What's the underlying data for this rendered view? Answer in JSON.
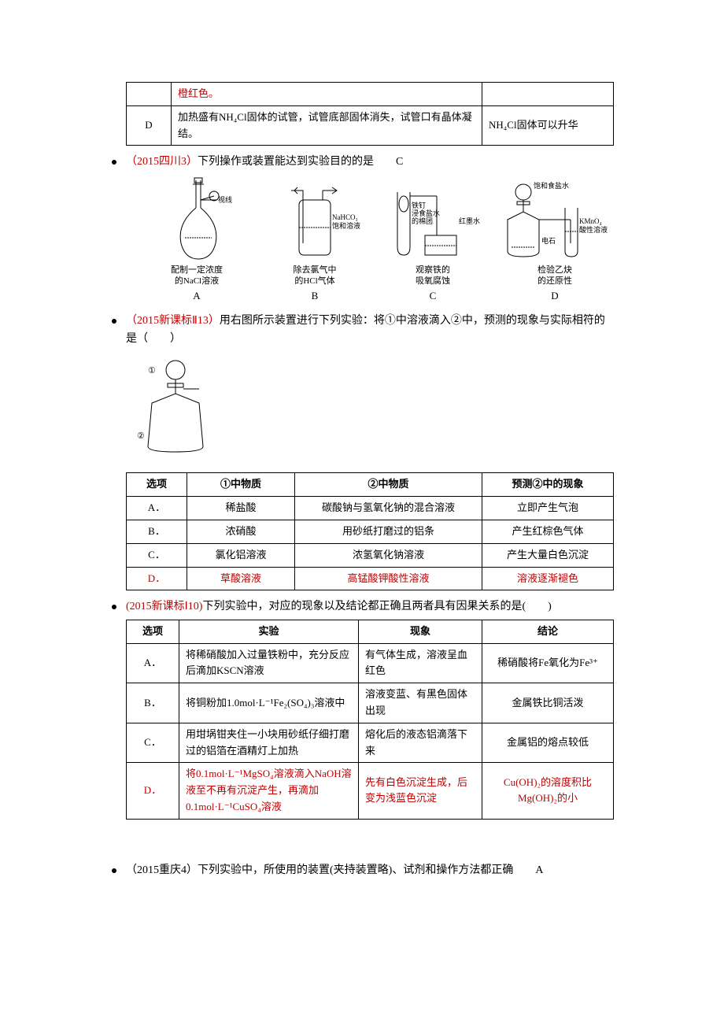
{
  "table1": {
    "row1": {
      "c1": "",
      "c2_red": "橙红色。",
      "c3": ""
    },
    "row2": {
      "c1": "D",
      "c2": "加热盛有NH₄Cl固体的试管，试管底部固体消失，试管口有晶体凝结。",
      "c3": "NH₄Cl固体可以升华"
    }
  },
  "q_sichuan": {
    "prefix": "（2015四川3）",
    "text": "下列操作或装置能达到实验目的的是　　",
    "answer": "C",
    "figs": {
      "A": {
        "desc1": "配制一定浓度",
        "desc2": "的NaCl溶液",
        "letter": "A",
        "note": "视线"
      },
      "B": {
        "desc1": "除去氯气中",
        "desc2": "的HCl气体",
        "letter": "B",
        "note1": "NaHCO₃",
        "note2": "饱和溶液"
      },
      "C": {
        "desc1": "观察铁的",
        "desc2": "吸氧腐蚀",
        "letter": "C",
        "note1": "铁钉",
        "note2": "浸食盐水",
        "note3": "的棉团",
        "note4": "红墨水"
      },
      "D": {
        "desc1": "检验乙炔",
        "desc2": "的还原性",
        "letter": "D",
        "note1": "饱和食盐水",
        "note2": "电石",
        "note3": "KMnO₄",
        "note4": "酸性溶液"
      }
    }
  },
  "q_xkb2": {
    "prefix": "（2015新课标Ⅱ13）",
    "text": "用右图所示装置进行下列实验：将①中溶液滴入②中，预测的现象与实际相符的是（　　）",
    "label1": "①",
    "label2": "②",
    "headers": {
      "opt": "选项",
      "c1": "①中物质",
      "c2": "②中物质",
      "c3": "预测②中的现象"
    },
    "rows": [
      {
        "opt": "A．",
        "c1": "稀盐酸",
        "c2": "碳酸钠与氢氧化钠的混合溶液",
        "c3": "立即产生气泡",
        "red": false
      },
      {
        "opt": "B．",
        "c1": "浓硝酸",
        "c2": "用砂纸打磨过的铝条",
        "c3": "产生红棕色气体",
        "red": false
      },
      {
        "opt": "C．",
        "c1": "氯化铝溶液",
        "c2": "浓氢氧化钠溶液",
        "c3": "产生大量白色沉淀",
        "red": false
      },
      {
        "opt": "D．",
        "c1": "草酸溶液",
        "c2": "高锰酸钾酸性溶液",
        "c3": "溶液逐渐褪色",
        "red": true
      }
    ]
  },
  "q_xkb1": {
    "prefix": "(2015新课标Ⅰ10)",
    "text": "下列实验中，对应的现象以及结论都正确且两者具有因果关系的是(　　)",
    "headers": {
      "opt": "选项",
      "exp": "实验",
      "phen": "现象",
      "concl": "结论"
    },
    "rows": [
      {
        "opt": "A．",
        "exp": "将稀硝酸加入过量铁粉中，充分反应后滴加KSCN溶液",
        "phen": "有气体生成，溶液呈血红色",
        "concl": "稀硝酸将Fe氧化为Fe³⁺",
        "red": false
      },
      {
        "opt": "B．",
        "exp": "将铜粉加1.0mol·L⁻¹Fe₂(SO₄)₃溶液中",
        "phen": "溶液变蓝、有黑色固体出现",
        "concl": "金属铁比铜活泼",
        "red": false
      },
      {
        "opt": "C．",
        "exp": "用坩埚钳夹住一小块用砂纸仔细打磨过的铝箔在酒精灯上加热",
        "phen": "熔化后的液态铝滴落下来",
        "concl": "金属铝的熔点较低",
        "red": false
      },
      {
        "opt": "D．",
        "exp": "将0.1mol·L⁻¹MgSO₄溶液滴入NaOH溶液至不再有沉淀产生，再滴加0.1mol·L⁻¹CuSO₄溶液",
        "phen": "先有白色沉淀生成，后变为浅蓝色沉淀",
        "concl": "Cu(OH)₂的溶度积比Mg(OH)₂的小",
        "red": true
      }
    ]
  },
  "q_chongqing": {
    "prefix": "（2015重庆4）",
    "text": "下列实验中，所使用的装置(夹持装置略)、试剂和操作方法都正确　　",
    "answer": "A"
  },
  "colors": {
    "red": "#c00000",
    "black": "#000000",
    "border": "#000000"
  }
}
